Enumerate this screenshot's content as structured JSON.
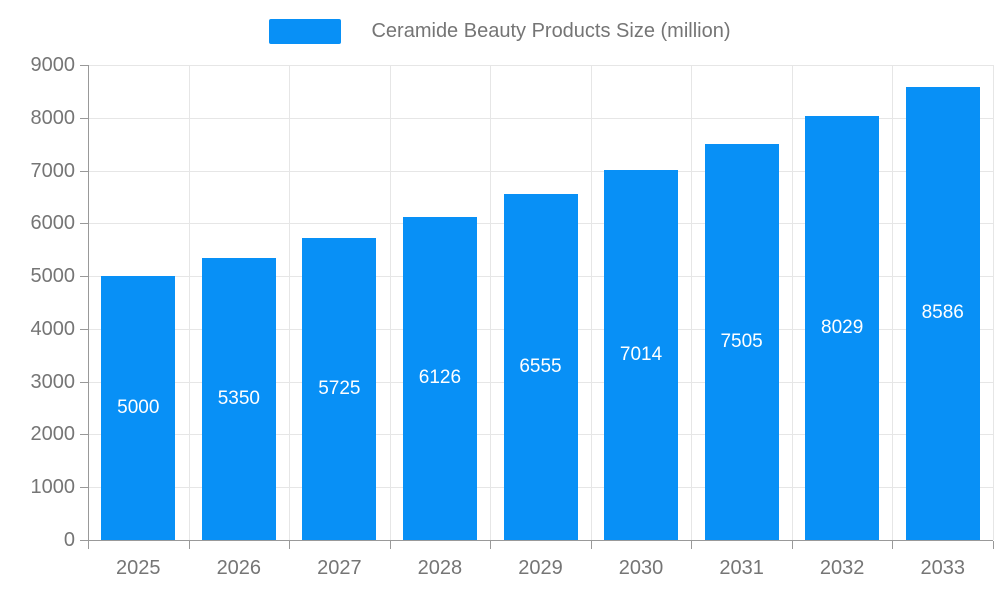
{
  "legend": {
    "label": "Ceramide Beauty Products Size (million)"
  },
  "chart_data": {
    "type": "bar",
    "title": "Ceramide Beauty Products Size (million)",
    "categories": [
      "2025",
      "2026",
      "2027",
      "2028",
      "2029",
      "2030",
      "2031",
      "2032",
      "2033"
    ],
    "values": [
      5000,
      5350,
      5725,
      6126,
      6555,
      7014,
      7505,
      8029,
      8586
    ],
    "xlabel": "",
    "ylabel": "",
    "ylim": [
      0,
      9000
    ],
    "ytick_interval": 1000,
    "grid": true,
    "legend_position": "top-center",
    "colors": {
      "bar": "#0890f6",
      "bar_value_label": "#ffffff",
      "axis_text": "#757575",
      "axis_line": "#999999",
      "gridline": "#e6e6e6",
      "background": "#ffffff"
    }
  }
}
